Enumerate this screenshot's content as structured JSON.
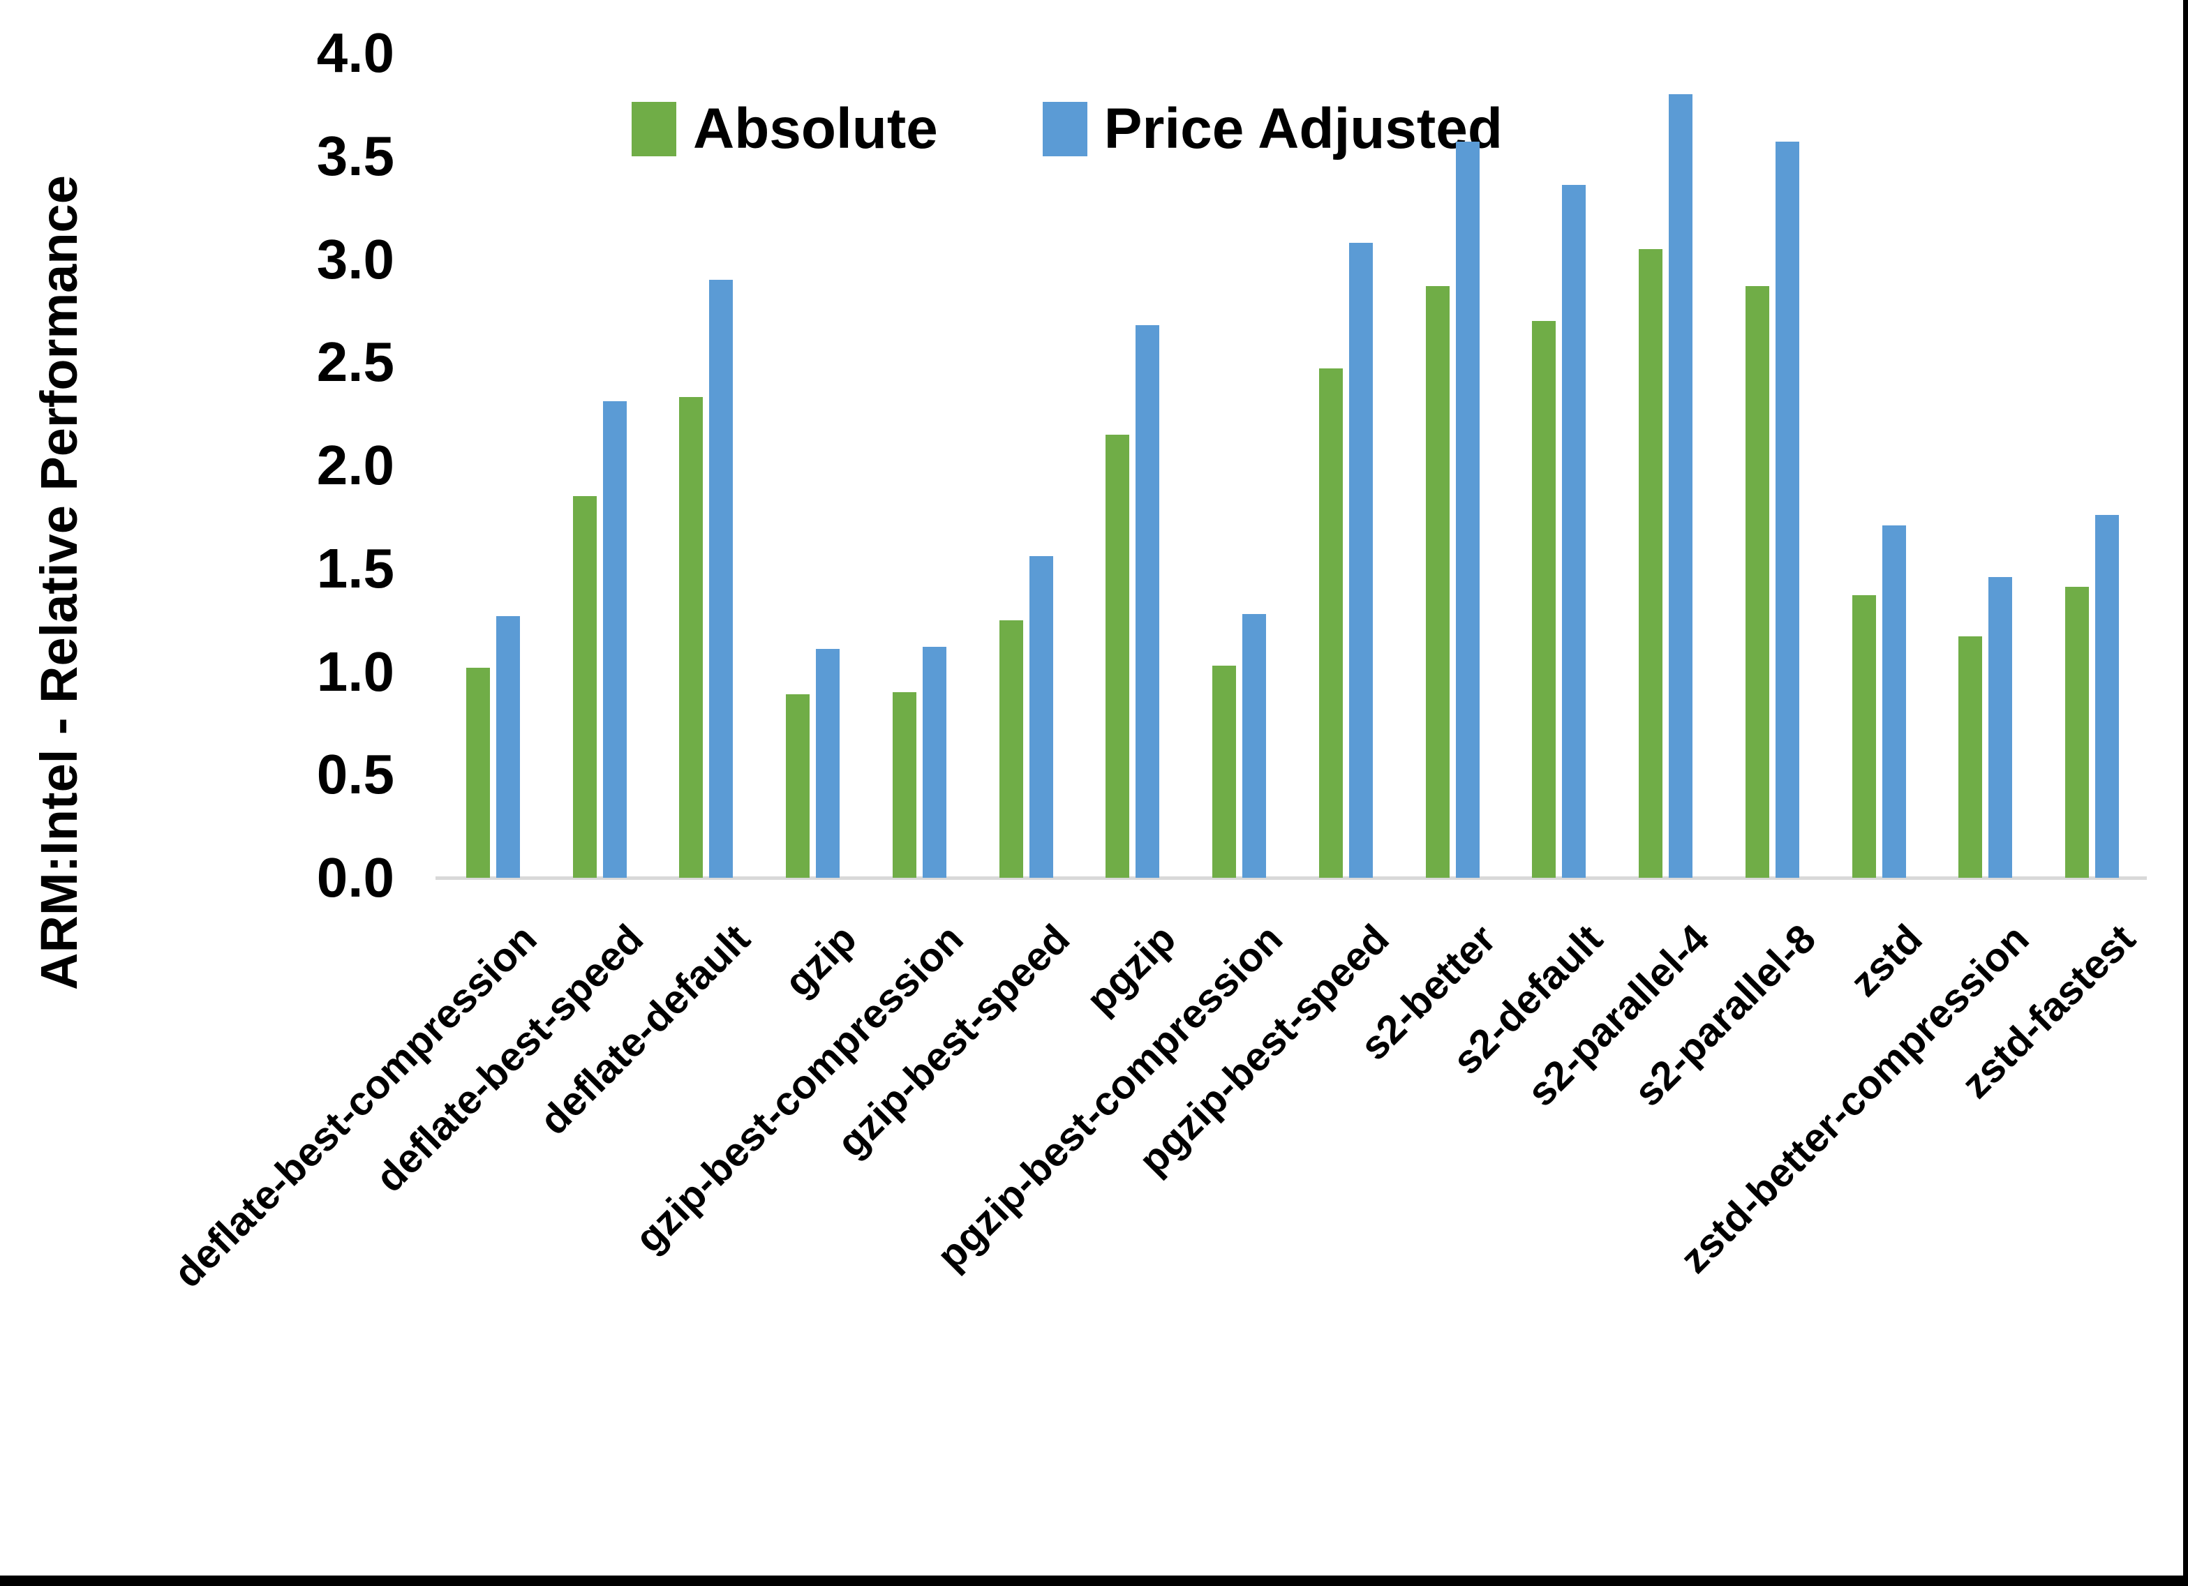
{
  "figure": {
    "background": "#FFFFFF",
    "border_color": "#000000",
    "axis_line_color": "#D9D9D9",
    "text_color": "#000000"
  },
  "chart_data": {
    "type": "bar",
    "title": "",
    "xlabel": "",
    "ylabel": "ARM:Intel - Relative Performance",
    "ylim": [
      0.0,
      4.0
    ],
    "ytick_labels": [
      "0.0",
      "0.5",
      "1.0",
      "1.5",
      "2.0",
      "2.5",
      "3.0",
      "3.5",
      "4.0"
    ],
    "grid": false,
    "legend_position": "top-center",
    "categories": [
      "deflate-best-compression",
      "deflate-best-speed",
      "deflate-default",
      "gzip",
      "gzip-best-compression",
      "gzip-best-speed",
      "pgzip",
      "pgzip-best-compression",
      "pgzip-best-speed",
      "s2-better",
      "s2-default",
      "s2-parallel-4",
      "s2-parallel-8",
      "zstd",
      "zstd-better-compression",
      "zstd-fastest"
    ],
    "series": [
      {
        "name": "Absolute",
        "color": "#70AD47",
        "values": [
          1.02,
          1.85,
          2.33,
          0.89,
          0.9,
          1.25,
          2.15,
          1.03,
          2.47,
          2.87,
          2.7,
          3.05,
          2.87,
          1.37,
          1.17,
          1.41
        ]
      },
      {
        "name": "Price Adjusted",
        "color": "#5B9BD5",
        "values": [
          1.27,
          2.31,
          2.9,
          1.11,
          1.12,
          1.56,
          2.68,
          1.28,
          3.08,
          3.57,
          3.36,
          3.8,
          3.57,
          1.71,
          1.46,
          1.76
        ]
      }
    ]
  }
}
